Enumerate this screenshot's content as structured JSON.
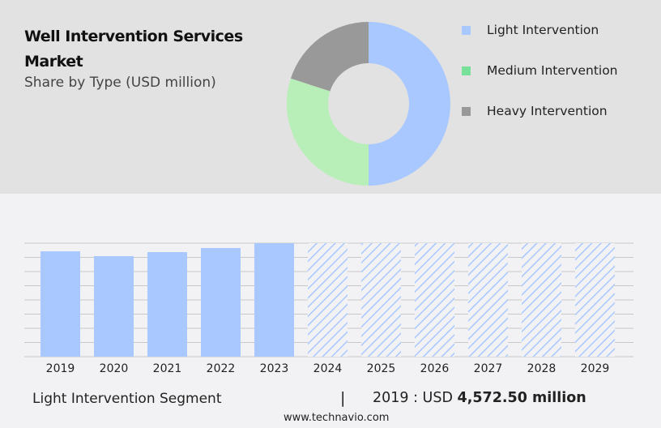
{
  "header": {
    "title": "Well Intervention Services Market",
    "subtitle": "Share by Type (USD million)"
  },
  "chart_data": [
    {
      "type": "pie",
      "variant": "donut",
      "categories": [
        "Light Intervention",
        "Medium Intervention",
        "Heavy Intervention"
      ],
      "values": [
        50,
        30,
        20
      ],
      "unit": "%",
      "colors": [
        "#a8c8ff",
        "#b8eeb8",
        "#999999"
      ],
      "legend_colors": [
        "#a8c8ff",
        "#77e099",
        "#999999"
      ],
      "legend": "right"
    },
    {
      "type": "bar",
      "categories": [
        "2019",
        "2020",
        "2021",
        "2022",
        "2023",
        "2024",
        "2025",
        "2026",
        "2027",
        "2028",
        "2029"
      ],
      "values": [
        4572.5,
        4361,
        4537,
        4713,
        4924,
        null,
        null,
        null,
        null,
        null,
        null
      ],
      "forecast_categories": [
        "2024",
        "2025",
        "2026",
        "2027",
        "2028",
        "2029"
      ],
      "forecast_style": "hatched",
      "ylim": [
        0,
        4924
      ],
      "grid": true,
      "color": "#a8c8ff",
      "xlabel": "",
      "ylabel": ""
    }
  ],
  "footer": {
    "segment": "Light Intervention Segment",
    "separator": "|",
    "prefix": "2019 : USD",
    "value": "4,572.50 million",
    "url": "www.technavio.com"
  }
}
